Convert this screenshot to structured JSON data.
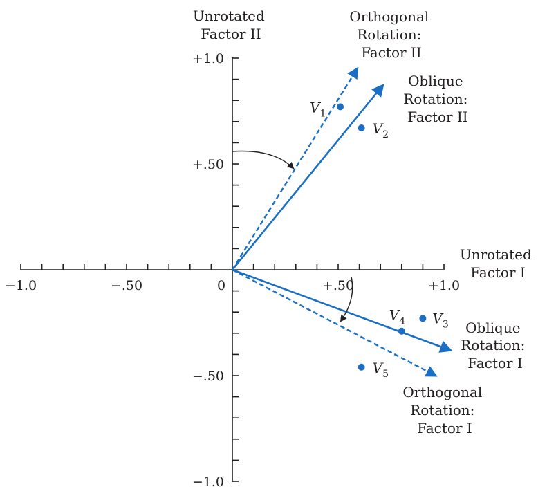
{
  "chart_data": {
    "type": "scatter",
    "xlim": [
      -1.0,
      1.0
    ],
    "ylim": [
      -1.0,
      1.0
    ],
    "x_tick_labels": [
      {
        "value": -1.0,
        "label": "−1.0"
      },
      {
        "value": -0.5,
        "label": "−.50"
      },
      {
        "value": 0,
        "label": "0"
      },
      {
        "value": 0.5,
        "label": "+.50"
      },
      {
        "value": 1.0,
        "label": "+1.0"
      }
    ],
    "y_tick_labels": [
      {
        "value": 1.0,
        "label": "+1.0"
      },
      {
        "value": 0.5,
        "label": "+.50"
      },
      {
        "value": -0.5,
        "label": "−.50"
      },
      {
        "value": -1.0,
        "label": "−1.0"
      }
    ],
    "minor_tick_step": 0.1,
    "grid": false,
    "color": "#1a6fc4",
    "points": [
      {
        "var": "V",
        "sub": "1",
        "x": 0.51,
        "y": 0.77
      },
      {
        "var": "V",
        "sub": "2",
        "x": 0.61,
        "y": 0.67
      },
      {
        "var": "V",
        "sub": "3",
        "x": 0.9,
        "y": -0.23
      },
      {
        "var": "V",
        "sub": "4",
        "x": 0.8,
        "y": -0.29
      },
      {
        "var": "V",
        "sub": "5",
        "x": 0.61,
        "y": -0.46
      }
    ],
    "vectors": [
      {
        "name": "orthogonal-factor-2",
        "style": "dashed",
        "to": [
          0.59,
          0.95
        ]
      },
      {
        "name": "oblique-factor-2",
        "style": "solid",
        "to": [
          0.71,
          0.87
        ]
      },
      {
        "name": "oblique-factor-1",
        "style": "solid",
        "to": [
          1.03,
          -0.38
        ]
      },
      {
        "name": "orthogonal-factor-1",
        "style": "dashed",
        "to": [
          0.96,
          -0.5
        ]
      }
    ],
    "axis_labels": {
      "unrotated_factor_2": [
        "Unrotated",
        "Factor II"
      ],
      "unrotated_factor_1": [
        "Unrotated",
        "Factor I"
      ]
    },
    "annotations": {
      "orthogonal_factor_2": [
        "Orthogonal",
        "Rotation:",
        "Factor II"
      ],
      "oblique_factor_2": [
        "Oblique",
        "Rotation:",
        "Factor II"
      ],
      "oblique_factor_1": [
        "Oblique",
        "Rotation:",
        "Factor I"
      ],
      "orthogonal_factor_1": [
        "Orthogonal",
        "Rotation:",
        "Factor I"
      ]
    }
  }
}
